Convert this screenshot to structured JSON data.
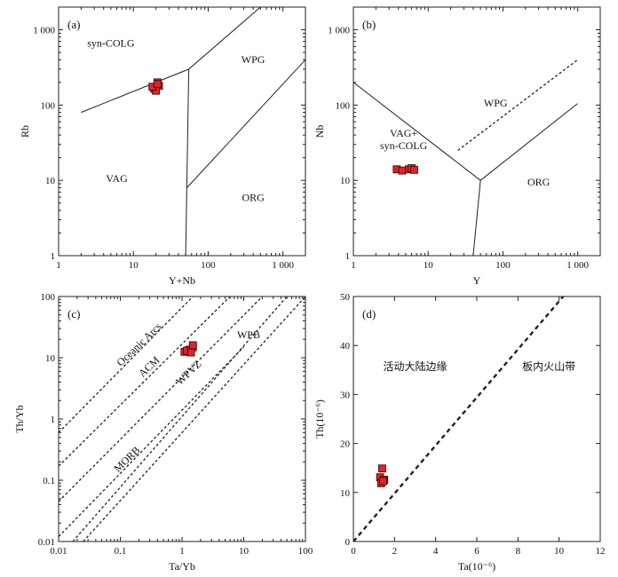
{
  "colors": {
    "marker_fill": "#d9262b",
    "marker_edge": "#3a0000",
    "line": "#222222"
  },
  "chart_data": [
    {
      "type": "scatter",
      "panel_label": "(a)",
      "xlabel": "Y+Nb",
      "ylabel": "Rb",
      "x_scale": "log",
      "y_scale": "log",
      "xlim": [
        1,
        2000
      ],
      "ylim": [
        1,
        2000
      ],
      "x_ticks": [
        {
          "v": 1,
          "t": "1"
        },
        {
          "v": 10,
          "t": "10"
        },
        {
          "v": 100,
          "t": "100"
        },
        {
          "v": 1000,
          "t": "1 000"
        }
      ],
      "y_ticks": [
        {
          "v": 1,
          "t": "1"
        },
        {
          "v": 10,
          "t": "10"
        },
        {
          "v": 100,
          "t": "100"
        },
        {
          "v": 1000,
          "t": "1 000"
        }
      ],
      "field_labels": [
        {
          "text": "syn-COLG",
          "x": 5,
          "y": 600
        },
        {
          "text": "WPG",
          "x": 400,
          "y": 360
        },
        {
          "text": "VAG",
          "x": 6,
          "y": 9.5
        },
        {
          "text": "ORG",
          "x": 400,
          "y": 5.3
        }
      ],
      "boundaries": [
        {
          "style": "solid",
          "points": [
            [
              2,
              80
            ],
            [
              55,
              300
            ],
            [
              500,
              2000
            ]
          ]
        },
        {
          "style": "solid",
          "points": [
            [
              55,
              300
            ],
            [
              50,
              1
            ]
          ]
        },
        {
          "style": "solid",
          "points": [
            [
              52,
              8
            ],
            [
              2000,
              400
            ]
          ]
        }
      ],
      "points": [
        [
          20,
          170
        ],
        [
          21,
          200
        ],
        [
          19,
          165
        ],
        [
          22,
          180
        ],
        [
          20,
          155
        ],
        [
          18,
          175
        ],
        [
          21,
          190
        ]
      ]
    },
    {
      "type": "scatter",
      "panel_label": "(b)",
      "xlabel": "Y",
      "ylabel": "Nb",
      "x_scale": "log",
      "y_scale": "log",
      "xlim": [
        1,
        2000
      ],
      "ylim": [
        1,
        2000
      ],
      "x_ticks": [
        {
          "v": 1,
          "t": "1"
        },
        {
          "v": 10,
          "t": "10"
        },
        {
          "v": 100,
          "t": "100"
        },
        {
          "v": 1000,
          "t": "1 000"
        }
      ],
      "y_ticks": [
        {
          "v": 1,
          "t": "1"
        },
        {
          "v": 10,
          "t": "10"
        },
        {
          "v": 100,
          "t": "100"
        },
        {
          "v": 1000,
          "t": "1 000"
        }
      ],
      "field_labels": [
        {
          "text": "WPG",
          "x": 80,
          "y": 95
        },
        {
          "text": "VAG+",
          "x": 4.7,
          "y": 38
        },
        {
          "text": "syn-COLG",
          "x": 4.7,
          "y": 26
        },
        {
          "text": "ORG",
          "x": 300,
          "y": 8.5
        }
      ],
      "boundaries": [
        {
          "style": "solid",
          "points": [
            [
              1,
              200
            ],
            [
              50,
              10
            ],
            [
              1000,
              105
            ]
          ]
        },
        {
          "style": "solid",
          "points": [
            [
              50,
              10
            ],
            [
              40,
              1
            ]
          ]
        },
        {
          "style": "dashed",
          "points": [
            [
              25,
              25
            ],
            [
              1000,
              400
            ]
          ]
        }
      ],
      "points": [
        [
          3.8,
          14
        ],
        [
          4.5,
          13.5
        ],
        [
          5.5,
          14
        ],
        [
          6,
          14.5
        ],
        [
          6.5,
          13.8
        ]
      ]
    },
    {
      "type": "scatter",
      "panel_label": "(c)",
      "xlabel": "Ta/Yb",
      "ylabel": "Th/Yb",
      "x_scale": "log",
      "y_scale": "log",
      "xlim": [
        0.01,
        100
      ],
      "ylim": [
        0.01,
        100
      ],
      "x_ticks": [
        {
          "v": 0.01,
          "t": "0.01"
        },
        {
          "v": 0.1,
          "t": "0.1"
        },
        {
          "v": 1,
          "t": "1"
        },
        {
          "v": 10,
          "t": "10"
        },
        {
          "v": 100,
          "t": "100"
        }
      ],
      "y_ticks": [
        {
          "v": 0.01,
          "t": "0.01"
        },
        {
          "v": 0.1,
          "t": "0.1"
        },
        {
          "v": 1,
          "t": "1"
        },
        {
          "v": 10,
          "t": "10"
        },
        {
          "v": 100,
          "t": "100"
        }
      ],
      "field_labels": [
        {
          "text": "Oceanic Arcs",
          "x": 0.22,
          "y": 15,
          "rot": -44
        },
        {
          "text": "ACM",
          "x": 0.32,
          "y": 6.5,
          "rot": -44
        },
        {
          "text": "WPVZ",
          "x": 1.4,
          "y": 5.2,
          "rot": -44
        },
        {
          "text": "WPB",
          "x": 12,
          "y": 21
        },
        {
          "text": "MORB",
          "x": 0.14,
          "y": 0.2,
          "rot": -44
        }
      ],
      "boundaries": [
        {
          "style": "dashed",
          "points": [
            [
              0.01,
              0.6
            ],
            [
              1.5,
              100
            ]
          ]
        },
        {
          "style": "dashed",
          "points": [
            [
              0.01,
              0.17
            ],
            [
              6,
              100
            ]
          ]
        },
        {
          "style": "dashed",
          "points": [
            [
              0.01,
              0.045
            ],
            [
              20,
              100
            ]
          ]
        },
        {
          "style": "dashed",
          "points": [
            [
              0.01,
              0.012
            ],
            [
              10,
              15
            ]
          ]
        },
        {
          "style": "dashed",
          "points": [
            [
              0.017,
              0.01
            ],
            [
              50,
              100
            ]
          ]
        },
        {
          "style": "dashed",
          "points": [
            [
              0.025,
              0.01
            ],
            [
              100,
              100
            ]
          ]
        }
      ],
      "points": [
        [
          1.1,
          12.5
        ],
        [
          1.3,
          13.5
        ],
        [
          1.5,
          14.8
        ],
        [
          1.2,
          13
        ],
        [
          1.4,
          12.2
        ],
        [
          1.5,
          16
        ]
      ]
    },
    {
      "type": "scatter",
      "panel_label": "(d)",
      "xlabel": "Ta(10⁻⁶)",
      "ylabel": "Th(10⁻⁶)",
      "x_scale": "linear",
      "y_scale": "linear",
      "xlim": [
        0,
        12
      ],
      "ylim": [
        0,
        50
      ],
      "x_ticks": [
        {
          "v": 0,
          "t": "0"
        },
        {
          "v": 2,
          "t": "2"
        },
        {
          "v": 4,
          "t": "4"
        },
        {
          "v": 6,
          "t": "6"
        },
        {
          "v": 8,
          "t": "8"
        },
        {
          "v": 10,
          "t": "10"
        },
        {
          "v": 12,
          "t": "12"
        }
      ],
      "y_ticks": [
        {
          "v": 0,
          "t": "0"
        },
        {
          "v": 10,
          "t": "10"
        },
        {
          "v": 20,
          "t": "20"
        },
        {
          "v": 30,
          "t": "30"
        },
        {
          "v": 40,
          "t": "40"
        },
        {
          "v": 50,
          "t": "50"
        }
      ],
      "field_labels": [
        {
          "text": "活动大陆边缘",
          "x": 3.0,
          "y": 35,
          "cjk": true
        },
        {
          "text": "板内火山带",
          "x": 9.5,
          "y": 35,
          "cjk": true
        }
      ],
      "boundaries": [
        {
          "style": "dashed-bold",
          "points": [
            [
              0,
              0
            ],
            [
              10.2,
              50
            ]
          ]
        }
      ],
      "points": [
        [
          1.4,
          14.9
        ],
        [
          1.3,
          13.1
        ],
        [
          1.5,
          12.6
        ],
        [
          1.35,
          11.9
        ],
        [
          1.45,
          12.3
        ]
      ]
    }
  ]
}
